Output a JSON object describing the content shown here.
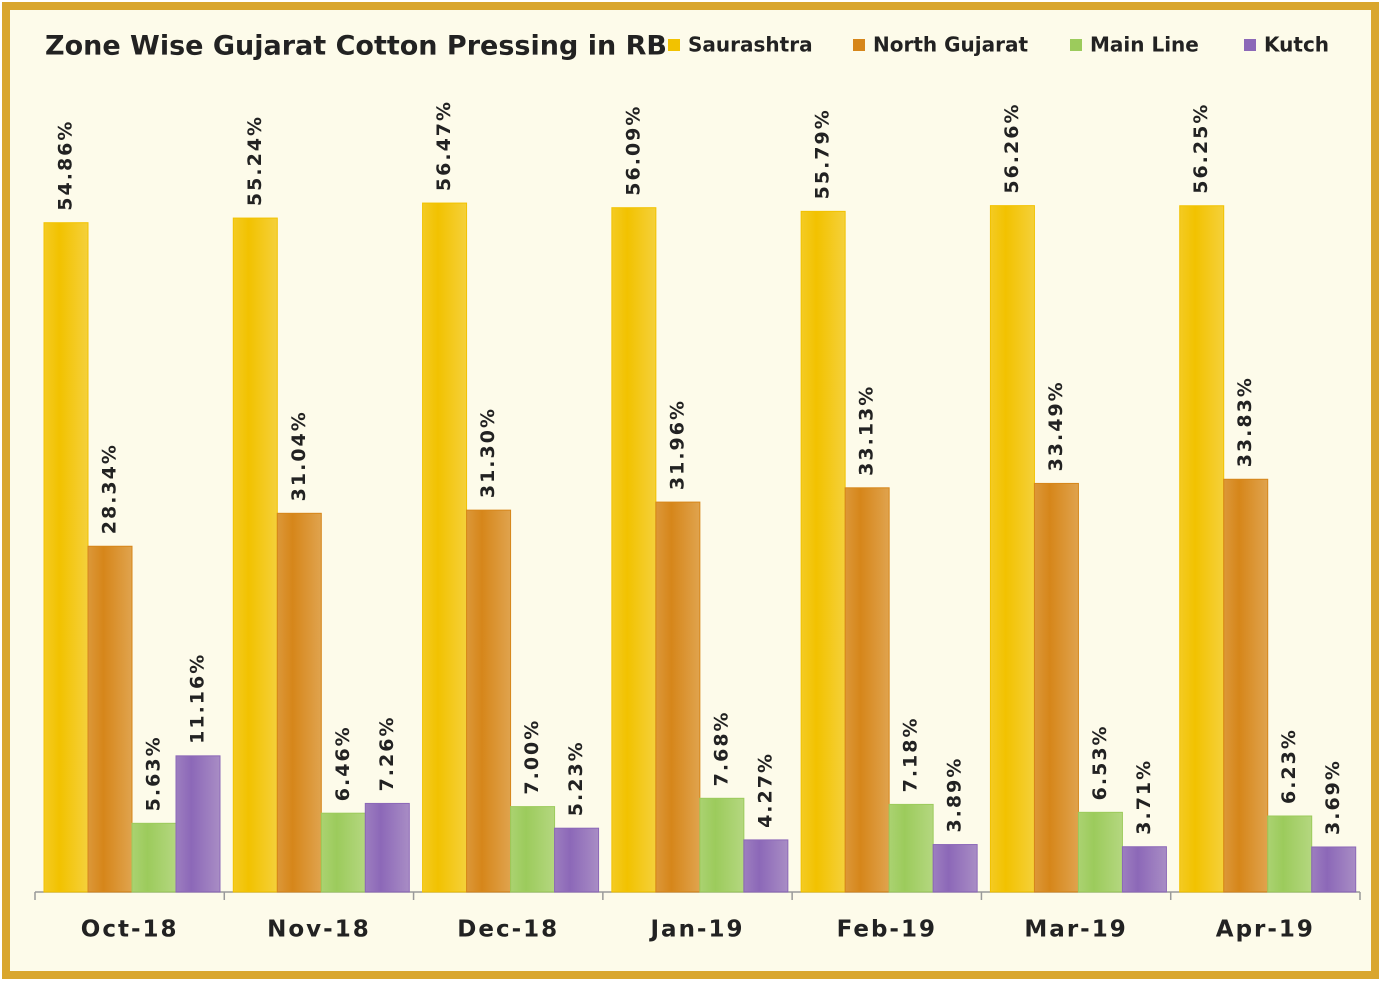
{
  "chart_data": {
    "type": "bar",
    "title": "Zone Wise Gujarat Cotton Pressing in RB",
    "categories": [
      "Oct-18",
      "Nov-18",
      "Dec-18",
      "Jan-19",
      "Feb-19",
      "Mar-19",
      "Apr-19"
    ],
    "series": [
      {
        "name": "Saurashtra",
        "color": "#f2c200",
        "values": [
          54.86,
          55.24,
          56.47,
          56.09,
          55.79,
          56.26,
          56.25
        ],
        "value_labels": [
          "54.86%",
          "55.24%",
          "56.47%",
          "56.09%",
          "55.79%",
          "56.26%",
          "56.25%"
        ]
      },
      {
        "name": "North Gujarat",
        "color": "#d6861a",
        "values": [
          28.34,
          31.04,
          31.3,
          31.96,
          33.13,
          33.49,
          33.83
        ],
        "value_labels": [
          "28.34%",
          "31.04%",
          "31.30%",
          "31.96%",
          "33.13%",
          "33.49%",
          "33.83%"
        ]
      },
      {
        "name": "Main Line",
        "color": "#9ccb5c",
        "values": [
          5.63,
          6.46,
          7.0,
          7.68,
          7.18,
          6.53,
          6.23
        ],
        "value_labels": [
          "5.63%",
          "6.46%",
          "7.00%",
          "7.68%",
          "7.18%",
          "6.53%",
          "6.23%"
        ]
      },
      {
        "name": "Kutch",
        "color": "#8c68b8",
        "values": [
          11.16,
          7.26,
          5.23,
          4.27,
          3.89,
          3.71,
          3.69
        ],
        "value_labels": [
          "11.16%",
          "7.26%",
          "5.23%",
          "4.27%",
          "3.89%",
          "3.71%",
          "3.69%"
        ]
      }
    ],
    "ylim": [
      0,
      60
    ],
    "legend": "top-right"
  }
}
